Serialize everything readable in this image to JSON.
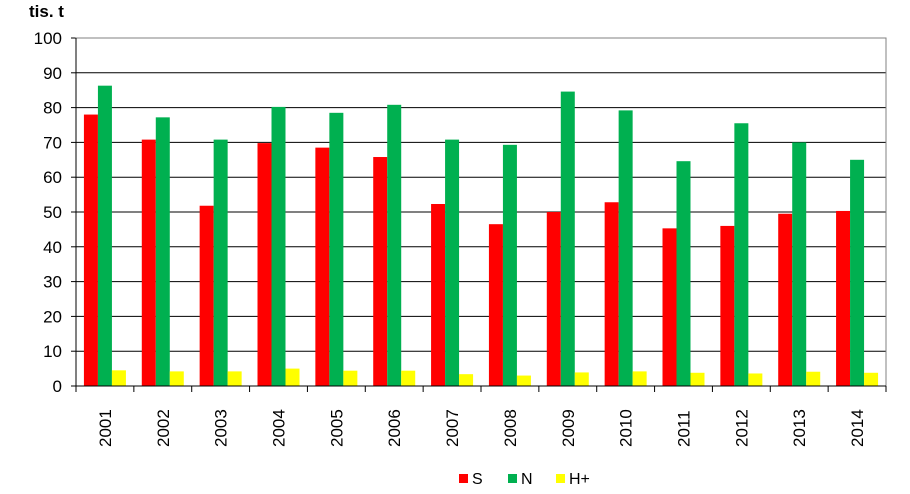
{
  "chart_data": {
    "type": "bar",
    "ylabel": "tis. t",
    "xlabel": "",
    "ylim": [
      0,
      100
    ],
    "yticks": [
      0,
      10,
      20,
      30,
      40,
      50,
      60,
      70,
      80,
      90,
      100
    ],
    "grid": true,
    "legend_position": "bottom",
    "categories": [
      "2001",
      "2002",
      "2003",
      "2004",
      "2005",
      "2006",
      "2007",
      "2008",
      "2009",
      "2010",
      "2011",
      "2012",
      "2013",
      "2014"
    ],
    "series": [
      {
        "name": "S",
        "color": "#ff0000",
        "values": [
          78,
          70.8,
          51.8,
          69.8,
          68.5,
          65.8,
          52.3,
          46.5,
          50,
          52.8,
          45.3,
          46,
          49.5,
          50.3
        ]
      },
      {
        "name": "N",
        "color": "#00b050",
        "values": [
          86.3,
          77.2,
          70.8,
          80.2,
          78.5,
          80.8,
          70.8,
          69.3,
          84.6,
          79.2,
          64.6,
          75.5,
          70,
          65
        ]
      },
      {
        "name": "H+",
        "color": "#ffff00",
        "values": [
          4.5,
          4.2,
          4.2,
          5,
          4.4,
          4.4,
          3.4,
          3,
          3.9,
          4.2,
          3.8,
          3.6,
          4.1,
          3.8
        ]
      }
    ]
  }
}
